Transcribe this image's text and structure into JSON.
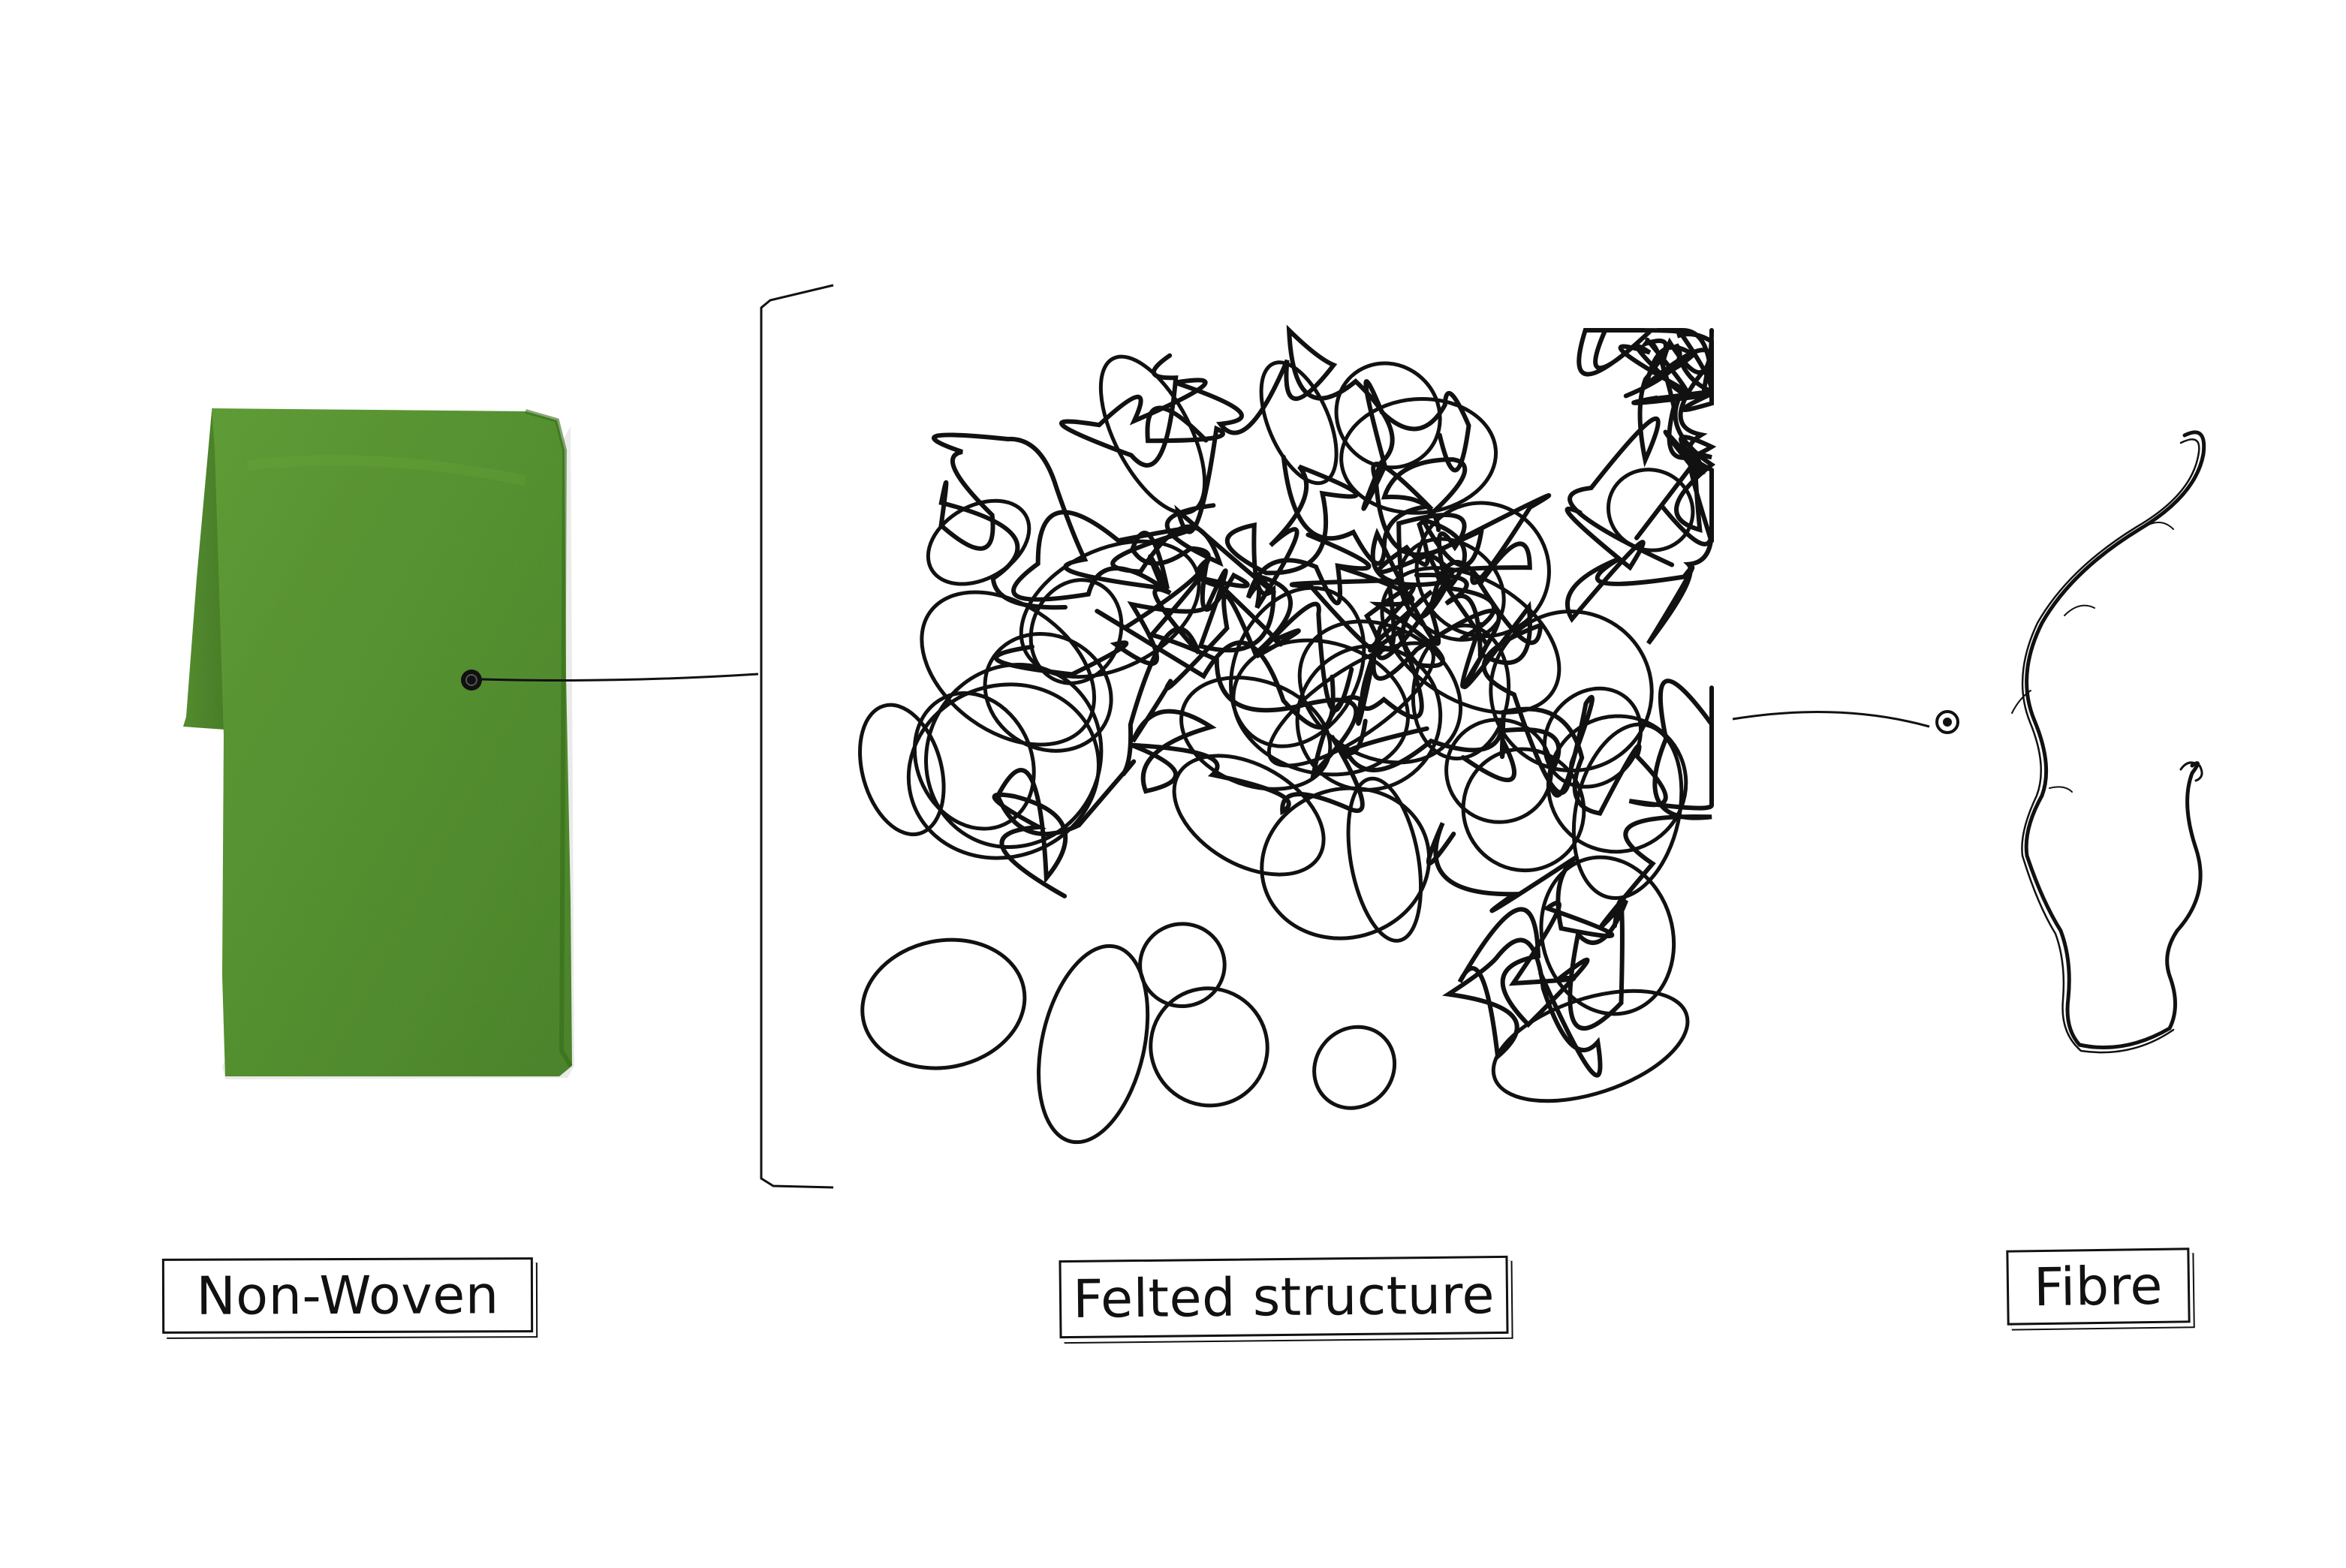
{
  "labels": {
    "non_woven": "Non-Woven",
    "felted_structure": "Felted structure",
    "fibre": "Fibre"
  },
  "colors": {
    "felt_green": "#4f8f2a",
    "felt_green_dark": "#3f7a20",
    "felt_green_light": "#6aa63a",
    "ink": "#111111",
    "background": "#ffffff"
  },
  "illustrations": {
    "fabric": "folded-green-felt-fabric",
    "structure": "tangled-fibre-scribble",
    "fibre": "single-wavy-fibre"
  }
}
